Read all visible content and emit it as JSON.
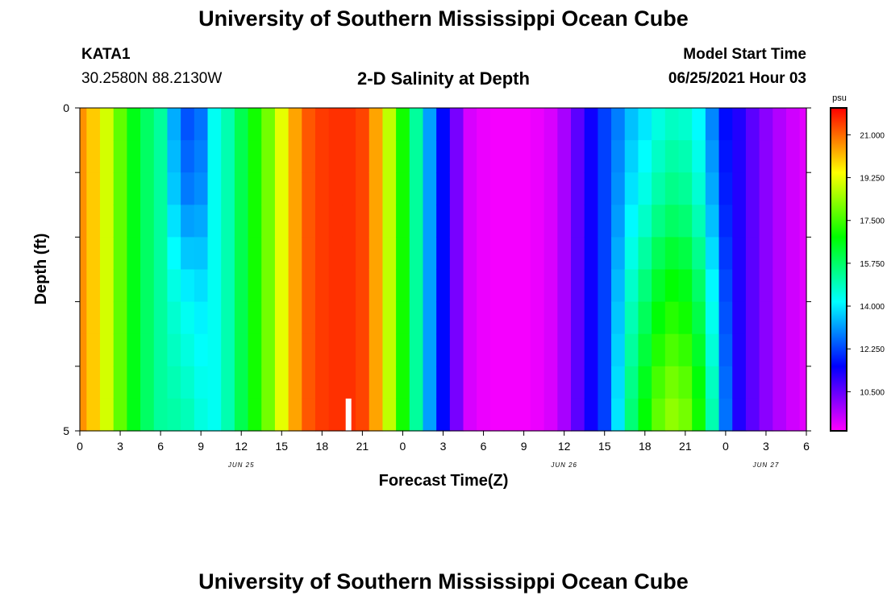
{
  "header": {
    "title": "University of Southern Mississippi Ocean Cube",
    "station_id": "KATA1",
    "coordinates": "30.2580N  88.2130W",
    "model_start_label": "Model Start Time",
    "model_start_value": "06/25/2021 Hour 03",
    "footer_title": "University of Southern Mississippi Ocean Cube"
  },
  "colors": {
    "scale": [
      "#ff00ff",
      "#0000ff",
      "#00ffff",
      "#00ff00",
      "#ffff00",
      "#ff0000"
    ],
    "marker": "#ffffff"
  },
  "chart_data": {
    "type": "heatmap",
    "title": "2-D Salinity at Depth",
    "xlabel": "Forecast Time(Z)",
    "ylabel": "Depth (ft)",
    "x_tick_labels": [
      "0",
      "3",
      "6",
      "9",
      "12",
      "15",
      "18",
      "21",
      "0",
      "3",
      "6",
      "9",
      "12",
      "15",
      "18",
      "21",
      "0",
      "3",
      "6"
    ],
    "x_date_labels": [
      {
        "label": "JUN 25",
        "hour": 12
      },
      {
        "label": "JUN 26",
        "hour": 36
      },
      {
        "label": "JUN 27",
        "hour": 51
      }
    ],
    "xlim_hours": [
      0,
      54
    ],
    "y_tick_labels": [
      "0",
      "5"
    ],
    "ylim_ft": [
      0,
      5
    ],
    "colorbar": {
      "unit": "psu",
      "range": [
        8.9,
        22.1
      ],
      "tick_labels": [
        "21.000",
        "19.250",
        "17.500",
        "15.750",
        "14.000",
        "12.250",
        "10.500"
      ]
    },
    "depth_levels_ft": [
      0.25,
      0.75,
      1.25,
      1.75,
      2.25,
      2.75,
      3.25,
      3.75,
      4.25,
      4.75
    ],
    "salinity_profile": {
      "hours": [
        0,
        1,
        2,
        3,
        4,
        5,
        6,
        7,
        8,
        9,
        10,
        11,
        12,
        13,
        14,
        15,
        16,
        17,
        18,
        19,
        20,
        21,
        22,
        23,
        24,
        25,
        26,
        27,
        28,
        29,
        30,
        31,
        32,
        33,
        34,
        35,
        36,
        37,
        38,
        39,
        40,
        41,
        42,
        43,
        44,
        45,
        46,
        47,
        48,
        49,
        50,
        51,
        52,
        53,
        54
      ],
      "psu": [
        20.6,
        20.0,
        19.0,
        17.8,
        16.6,
        15.8,
        15.2,
        14.6,
        14.2,
        14.0,
        14.3,
        15.0,
        16.0,
        17.0,
        18.0,
        19.2,
        20.4,
        21.2,
        21.5,
        21.6,
        21.6,
        21.4,
        20.4,
        18.8,
        17.0,
        15.2,
        13.2,
        11.6,
        10.3,
        9.3,
        9.1,
        9.0,
        9.0,
        9.0,
        9.1,
        9.3,
        9.8,
        10.6,
        11.4,
        12.2,
        13.4,
        14.6,
        15.4,
        16.2,
        16.6,
        16.4,
        15.6,
        14.0,
        12.2,
        11.2,
        10.6,
        10.1,
        9.7,
        9.4,
        9.2
      ]
    },
    "depth_offsets": {
      "start_hour": 39,
      "end_hour": 49,
      "peak_hour": 44.5,
      "psu_by_depth": [
        -1.8,
        -1.5,
        -1.2,
        -0.8,
        -0.3,
        0.2,
        0.6,
        1.0,
        1.4,
        1.7
      ]
    },
    "surface_dip": {
      "start_hour": 6,
      "end_hour": 10,
      "psu_by_depth": [
        -1.8,
        -1.6,
        -1.4,
        -1.0,
        -0.6,
        -0.2,
        0.1,
        0.3,
        0.5,
        0.7
      ]
    },
    "time_marker": {
      "hour": 20,
      "depth_range_ft": [
        4.5,
        5
      ]
    }
  }
}
